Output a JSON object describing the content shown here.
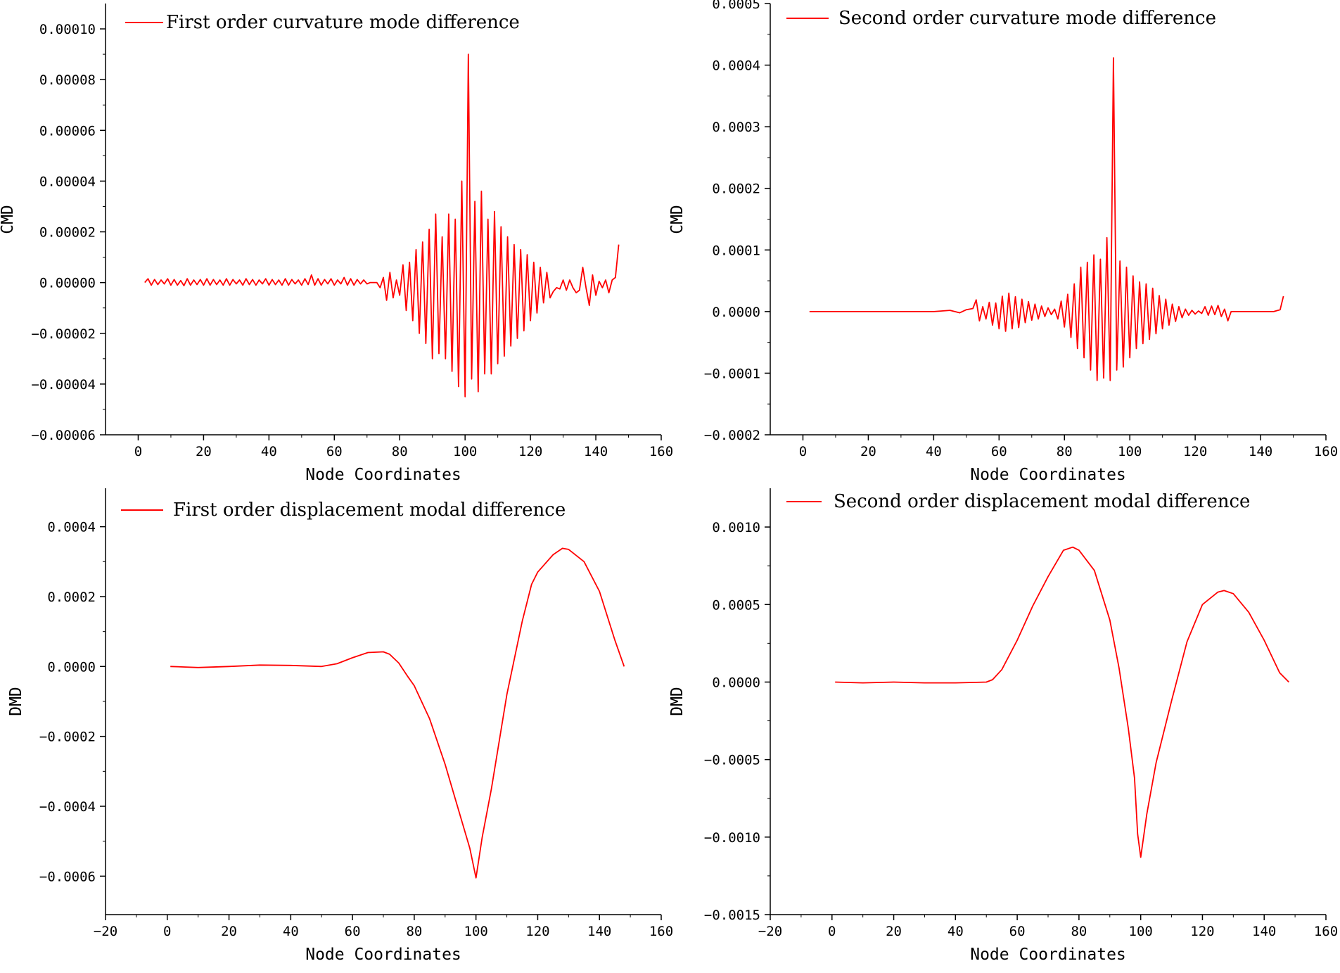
{
  "colors": {
    "series": "#ff0000",
    "axis": "#000000",
    "background": "#ffffff"
  },
  "chart_data": [
    {
      "type": "line",
      "panel": "top-left",
      "legend": "First order curvature mode difference",
      "legend_position": "top-left",
      "xlabel": "Node Coordinates",
      "ylabel": "CMD",
      "xlim": [
        -10,
        160
      ],
      "ylim": [
        -6e-05,
        0.00011
      ],
      "xticks": [
        0,
        20,
        40,
        60,
        80,
        100,
        120,
        140,
        160
      ],
      "xtick_labels": [
        "0",
        "20",
        "40",
        "60",
        "80",
        "100",
        "120",
        "140",
        "160"
      ],
      "yticks": [
        -6e-05,
        -4e-05,
        -2e-05,
        0,
        2e-05,
        4e-05,
        6e-05,
        8e-05,
        0.0001
      ],
      "ytick_labels": [
        "−0.00006",
        "−0.00004",
        "−0.00002",
        "0.00000",
        "0.00002",
        "0.00004",
        "0.00006",
        "0.00008",
        "0.00010"
      ],
      "grid": false,
      "series": [
        {
          "x": [
            2,
            3,
            4,
            5,
            6,
            7,
            8,
            9,
            10,
            11,
            12,
            13,
            14,
            15,
            16,
            17,
            18,
            19,
            20,
            21,
            22,
            23,
            24,
            25,
            26,
            27,
            28,
            29,
            30,
            31,
            32,
            33,
            34,
            35,
            36,
            37,
            38,
            39,
            40,
            41,
            42,
            43,
            44,
            45,
            46,
            47,
            48,
            49,
            50,
            51,
            52,
            53,
            54,
            55,
            56,
            57,
            58,
            59,
            60,
            61,
            62,
            63,
            64,
            65,
            66,
            67,
            68,
            69,
            70,
            71,
            72,
            73,
            74,
            75,
            76,
            77,
            78,
            79,
            80,
            81,
            82,
            83,
            84,
            85,
            86,
            87,
            88,
            89,
            90,
            91,
            92,
            93,
            94,
            95,
            96,
            97,
            98,
            99,
            100,
            101,
            102,
            103,
            104,
            105,
            106,
            107,
            108,
            109,
            110,
            111,
            112,
            113,
            114,
            115,
            116,
            117,
            118,
            119,
            120,
            121,
            122,
            123,
            124,
            125,
            126,
            127,
            128,
            129,
            130,
            131,
            132,
            133,
            134,
            135,
            136,
            137,
            138,
            139,
            140,
            141,
            142,
            143,
            144,
            145,
            146,
            147
          ],
          "y": [
            0,
            1.5e-06,
            -1e-06,
            1.2e-06,
            -8e-07,
            1e-06,
            -5e-07,
            1.5e-06,
            -1e-06,
            1.2e-06,
            -1e-06,
            8e-07,
            -1.2e-06,
            1.5e-06,
            -1e-06,
            1e-06,
            -8e-07,
            1.2e-06,
            -1e-06,
            1.5e-06,
            -1e-06,
            1.2e-06,
            -8e-07,
            1e-06,
            -1e-06,
            1.5e-06,
            -1e-06,
            1.2e-06,
            -5e-07,
            1e-06,
            -1e-06,
            1.5e-06,
            -8e-07,
            1.2e-06,
            -1e-06,
            1e-06,
            -5e-07,
            1.5e-06,
            -1e-06,
            1.2e-06,
            -8e-07,
            1e-06,
            -1e-06,
            1.5e-06,
            -1e-06,
            1.2e-06,
            -5e-07,
            1e-06,
            -1e-06,
            1.5e-06,
            -8e-07,
            3e-06,
            -1e-06,
            1.5e-06,
            -1e-06,
            1.2e-06,
            -5e-07,
            1.5e-06,
            -1e-06,
            1e-06,
            -5e-07,
            2e-06,
            -1e-06,
            1.5e-06,
            -1e-06,
            1.2e-06,
            -5e-07,
            1e-06,
            -5e-07,
            0,
            0,
            0,
            -2e-06,
            2e-06,
            -7e-06,
            4e-06,
            -6e-06,
            1e-06,
            -5e-06,
            7e-06,
            -1.1e-05,
            8e-06,
            -1.5e-05,
            1.3e-05,
            -2e-05,
            1.6e-05,
            -2.4e-05,
            2.1e-05,
            -3e-05,
            2.7e-05,
            -2.8e-05,
            1.8e-05,
            -3e-05,
            2.7e-05,
            -3.5e-05,
            2.5e-05,
            -4.1e-05,
            4e-05,
            -4.5e-05,
            9e-05,
            -3.8e-05,
            3.2e-05,
            -4.3e-05,
            3.6e-05,
            -3.6e-05,
            2.5e-05,
            -3.6e-05,
            2.8e-05,
            -3.2e-05,
            2.2e-05,
            -2.9e-05,
            1.8e-05,
            -2.5e-05,
            1.5e-05,
            -2.2e-05,
            1.3e-05,
            -1.9e-05,
            1.1e-05,
            -1.5e-05,
            8e-06,
            -1.2e-05,
            6e-06,
            -8e-06,
            4e-06,
            -6e-06,
            -3.5e-06,
            -2e-06,
            -2.5e-06,
            1e-06,
            -3e-06,
            1e-06,
            -2e-06,
            -4e-06,
            -3e-06,
            6e-06,
            -2e-06,
            -9e-06,
            3e-06,
            -5e-06,
            5e-07,
            -2e-06,
            1e-06,
            -4e-06,
            1e-06,
            2e-06,
            1.5e-05
          ]
        }
      ]
    },
    {
      "type": "line",
      "panel": "top-right",
      "legend": "Second order curvature mode difference",
      "legend_position": "top-left",
      "xlabel": "Node Coordinates",
      "ylabel": "CMD",
      "xlim": [
        -10,
        160
      ],
      "ylim": [
        -0.0002,
        0.0005
      ],
      "xticks": [
        0,
        20,
        40,
        60,
        80,
        100,
        120,
        140,
        160
      ],
      "xtick_labels": [
        "0",
        "20",
        "40",
        "60",
        "80",
        "100",
        "120",
        "140",
        "160"
      ],
      "yticks": [
        -0.0002,
        -0.0001,
        0,
        0.0001,
        0.0002,
        0.0003,
        0.0004,
        0.0005
      ],
      "ytick_labels": [
        "−0.0002",
        "−0.0001",
        "0.0000",
        "0.0001",
        "0.0002",
        "0.0003",
        "0.0004",
        "0.0005"
      ],
      "grid": false,
      "series": [
        {
          "x": [
            2,
            10,
            20,
            30,
            40,
            45,
            48,
            50,
            52,
            53,
            54,
            55,
            56,
            57,
            58,
            59,
            60,
            61,
            62,
            63,
            64,
            65,
            66,
            67,
            68,
            69,
            70,
            71,
            72,
            73,
            74,
            75,
            76,
            77,
            78,
            79,
            80,
            81,
            82,
            83,
            84,
            85,
            86,
            87,
            88,
            89,
            90,
            91,
            92,
            93,
            94,
            95,
            96,
            97,
            98,
            99,
            100,
            101,
            102,
            103,
            104,
            105,
            106,
            107,
            108,
            109,
            110,
            111,
            112,
            113,
            114,
            115,
            116,
            117,
            118,
            119,
            120,
            121,
            122,
            123,
            124,
            125,
            126,
            127,
            128,
            129,
            130,
            131,
            132,
            133,
            134,
            135,
            136,
            137,
            138,
            139,
            140,
            142,
            144,
            146,
            147
          ],
          "y": [
            0,
            0,
            0,
            0,
            0,
            2e-06,
            -2e-06,
            3e-06,
            5e-06,
            1.9e-05,
            -1.5e-05,
            8e-06,
            -1.2e-05,
            1.5e-05,
            -2.2e-05,
            1.4e-05,
            -2.8e-05,
            2.5e-05,
            -3.2e-05,
            3e-05,
            -2.8e-05,
            2.4e-05,
            -2.6e-05,
            2e-05,
            -1.8e-05,
            1.6e-05,
            -1.4e-05,
            1.2e-05,
            -1.2e-05,
            9e-06,
            -8e-06,
            6e-06,
            -5e-06,
            4e-06,
            -1.2e-05,
            1.7e-05,
            -2.5e-05,
            2.8e-05,
            -4.2e-05,
            4.5e-05,
            -6e-05,
            7.2e-05,
            -7.5e-05,
            8e-05,
            -9.5e-05,
            9.2e-05,
            -0.000112,
            8.5e-05,
            -0.000108,
            0.00012,
            -0.000112,
            0.000412,
            -9.5e-05,
            8.2e-05,
            -9e-05,
            7.2e-05,
            -7.5e-05,
            5.8e-05,
            -6e-05,
            4.8e-05,
            -5.2e-05,
            4.5e-05,
            -4.5e-05,
            3.8e-05,
            -3.6e-05,
            2.6e-05,
            -2.8e-05,
            2e-05,
            -2.2e-05,
            1.2e-05,
            -1.6e-05,
            8e-06,
            -1e-05,
            4e-06,
            -6e-06,
            2e-06,
            -4e-06,
            1e-06,
            -3e-06,
            8e-06,
            -6e-06,
            9e-06,
            -5e-06,
            1e-05,
            -8e-06,
            4e-06,
            -1.5e-05,
            0,
            0,
            0,
            0,
            0,
            0,
            0,
            0,
            0,
            0,
            0,
            0,
            3e-06,
            2.5e-05
          ]
        }
      ]
    },
    {
      "type": "line",
      "panel": "bottom-left",
      "legend": "First order displacement modal difference",
      "legend_position": "top-left",
      "xlabel": "Node Coordinates",
      "ylabel": "DMD",
      "xlim": [
        -20,
        160
      ],
      "ylim": [
        -0.00071,
        0.00051
      ],
      "xticks": [
        -20,
        0,
        20,
        40,
        60,
        80,
        100,
        120,
        140,
        160
      ],
      "xtick_labels": [
        "−20",
        "0",
        "20",
        "40",
        "60",
        "80",
        "100",
        "120",
        "140",
        "160"
      ],
      "yticks": [
        -0.0006,
        -0.0004,
        -0.0002,
        0,
        0.0002,
        0.0004
      ],
      "ytick_labels": [
        "−0.0006",
        "−0.0004",
        "−0.0002",
        "0.0000",
        "0.0002",
        "0.0004"
      ],
      "grid": false,
      "series": [
        {
          "x": [
            1,
            10,
            20,
            30,
            40,
            50,
            55,
            60,
            65,
            70,
            72,
            75,
            78,
            80,
            85,
            90,
            95,
            98,
            100,
            102,
            105,
            110,
            115,
            118,
            120,
            125,
            128,
            130,
            135,
            140,
            145,
            148
          ],
          "y": [
            0,
            -3e-06,
            0,
            4e-06,
            3e-06,
            0,
            8e-06,
            2.5e-05,
            4e-05,
            4.2e-05,
            3.5e-05,
            1e-05,
            -3e-05,
            -5.5e-05,
            -0.00015,
            -0.00028,
            -0.00043,
            -0.00052,
            -0.000605,
            -0.00049,
            -0.00035,
            -8e-05,
            0.00013,
            0.000235,
            0.00027,
            0.00032,
            0.000338,
            0.000335,
            0.0003,
            0.000215,
            7.5e-05,
            0
          ]
        }
      ]
    },
    {
      "type": "line",
      "panel": "bottom-right",
      "legend": "Second order displacement modal difference",
      "legend_position": "top-left",
      "xlabel": "Node Coordinates",
      "ylabel": "DMD",
      "xlim": [
        -20,
        160
      ],
      "ylim": [
        -0.0015,
        0.00125
      ],
      "xticks": [
        -20,
        0,
        20,
        40,
        60,
        80,
        100,
        120,
        140,
        160
      ],
      "xtick_labels": [
        "−20",
        "0",
        "20",
        "40",
        "60",
        "80",
        "100",
        "120",
        "140",
        "160"
      ],
      "yticks": [
        -0.0015,
        -0.001,
        -0.0005,
        0,
        0.0005,
        0.001
      ],
      "ytick_labels": [
        "−0.0015",
        "−0.0010",
        "−0.0005",
        "0.0000",
        "0.0005",
        "0.0010"
      ],
      "grid": false,
      "series": [
        {
          "x": [
            1,
            10,
            20,
            30,
            40,
            50,
            52,
            55,
            60,
            65,
            70,
            75,
            78,
            80,
            85,
            90,
            93,
            96,
            98,
            99,
            100,
            102,
            105,
            110,
            115,
            120,
            125,
            127,
            130,
            135,
            140,
            145,
            148
          ],
          "y": [
            0,
            -5e-06,
            0,
            -5e-06,
            -5e-06,
            0,
            1.5e-05,
            8e-05,
            0.00027,
            0.00049,
            0.00068,
            0.00085,
            0.00087,
            0.00085,
            0.00072,
            0.0004,
            9e-05,
            -0.0003,
            -0.00062,
            -0.00098,
            -0.00113,
            -0.00085,
            -0.00052,
            -0.00012,
            0.00026,
            0.0005,
            0.00058,
            0.00059,
            0.00057,
            0.00045,
            0.00027,
            6e-05,
            0
          ]
        }
      ]
    }
  ]
}
